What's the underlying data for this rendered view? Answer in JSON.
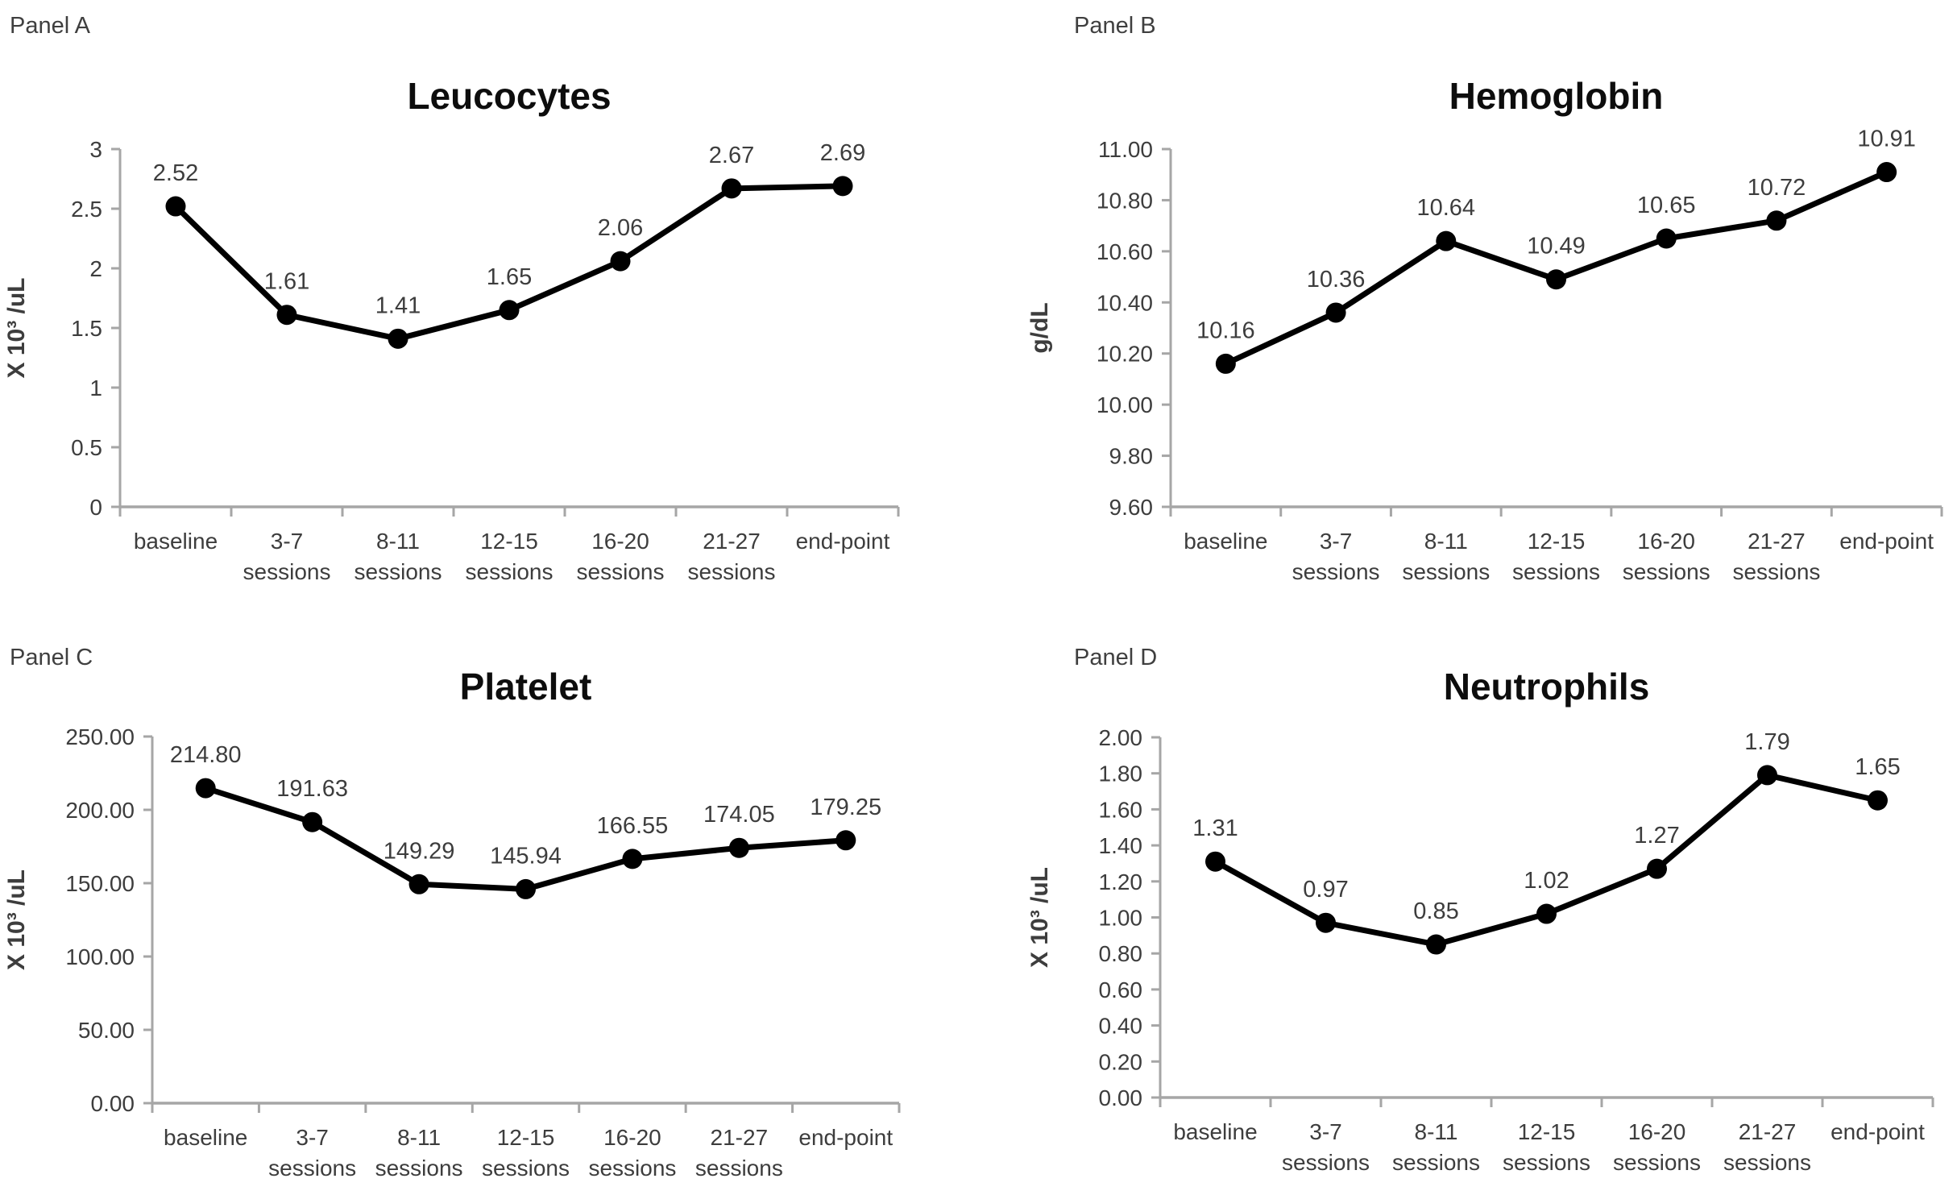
{
  "chart_data": [
    {
      "panel_label": "Panel A",
      "type": "line",
      "title": "Leucocytes",
      "xlabel": "",
      "ylabel": "X 10³ /uL",
      "categories": [
        "baseline",
        "3-7 sessions",
        "8-11 sessions",
        "12-15 sessions",
        "16-20 sessions",
        "21-27 sessions",
        "end-point"
      ],
      "values": [
        2.52,
        1.61,
        1.41,
        1.65,
        2.06,
        2.67,
        2.69
      ],
      "data_labels": [
        "2.52",
        "1.61",
        "1.41",
        "1.65",
        "2.06",
        "2.67",
        "2.69"
      ],
      "ylim": [
        0,
        3
      ],
      "ytick_values": [
        0,
        0.5,
        1,
        1.5,
        2,
        2.5,
        3
      ],
      "ytick_labels": [
        "0",
        "0.5",
        "1",
        "1.5",
        "2",
        "2.5",
        "3"
      ],
      "grid": false,
      "legend": "none",
      "line_color": "#000000",
      "marker": "filled-circle"
    },
    {
      "panel_label": "Panel B",
      "type": "line",
      "title": "Hemoglobin",
      "xlabel": "",
      "ylabel": "g/dL",
      "categories": [
        "baseline",
        "3-7 sessions",
        "8-11 sessions",
        "12-15 sessions",
        "16-20 sessions",
        "21-27 sessions",
        "end-point"
      ],
      "values": [
        10.16,
        10.36,
        10.64,
        10.49,
        10.65,
        10.72,
        10.91
      ],
      "data_labels": [
        "10.16",
        "10.36",
        "10.64",
        "10.49",
        "10.65",
        "10.72",
        "10.91"
      ],
      "ylim": [
        9.6,
        11.0
      ],
      "ytick_values": [
        9.6,
        9.8,
        10.0,
        10.2,
        10.4,
        10.6,
        10.8,
        11.0
      ],
      "ytick_labels": [
        "9.60",
        "9.80",
        "10.00",
        "10.20",
        "10.40",
        "10.60",
        "10.80",
        "11.00"
      ],
      "grid": false,
      "legend": "none",
      "line_color": "#000000",
      "marker": "filled-circle"
    },
    {
      "panel_label": "Panel C",
      "type": "line",
      "title": "Platelet",
      "xlabel": "",
      "ylabel": "X 10³ /uL",
      "categories": [
        "baseline",
        "3-7 sessions",
        "8-11 sessions",
        "12-15 sessions",
        "16-20 sessions",
        "21-27 sessions",
        "end-point"
      ],
      "values": [
        214.8,
        191.63,
        149.29,
        145.94,
        166.55,
        174.05,
        179.25
      ],
      "data_labels": [
        "214.80",
        "191.63",
        "149.29",
        "145.94",
        "166.55",
        "174.05",
        "179.25"
      ],
      "ylim": [
        0,
        250
      ],
      "ytick_values": [
        0,
        50,
        100,
        150,
        200,
        250
      ],
      "ytick_labels": [
        "0.00",
        "50.00",
        "100.00",
        "150.00",
        "200.00",
        "250.00"
      ],
      "grid": false,
      "legend": "none",
      "line_color": "#000000",
      "marker": "filled-circle"
    },
    {
      "panel_label": "Panel D",
      "type": "line",
      "title": "Neutrophils",
      "xlabel": "",
      "ylabel": "X 10³ /uL",
      "categories": [
        "baseline",
        "3-7 sessions",
        "8-11 sessions",
        "12-15 sessions",
        "16-20 sessions",
        "21-27 sessions",
        "end-point"
      ],
      "values": [
        1.31,
        0.97,
        0.85,
        1.02,
        1.27,
        1.79,
        1.65
      ],
      "data_labels": [
        "1.31",
        "0.97",
        "0.85",
        "1.02",
        "1.27",
        "1.79",
        "1.65"
      ],
      "ylim": [
        0,
        2
      ],
      "ytick_values": [
        0,
        0.2,
        0.4,
        0.6,
        0.8,
        1.0,
        1.2,
        1.4,
        1.6,
        1.8,
        2.0
      ],
      "ytick_labels": [
        "0.00",
        "0.20",
        "0.40",
        "0.60",
        "0.80",
        "1.00",
        "1.20",
        "1.40",
        "1.60",
        "1.80",
        "2.00"
      ],
      "grid": false,
      "legend": "none",
      "line_color": "#000000",
      "marker": "filled-circle"
    }
  ]
}
